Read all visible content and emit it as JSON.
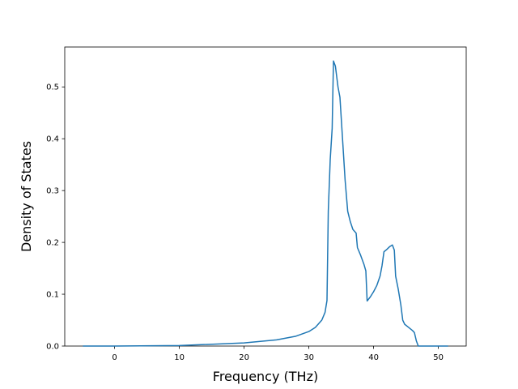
{
  "chart_data": {
    "type": "line",
    "x_label": "Frequency (THz)",
    "y_label": "Density of States",
    "xlim": [
      -7.7,
      54.3
    ],
    "ylim": [
      0,
      0.577
    ],
    "xticks": [
      0,
      10,
      20,
      30,
      40,
      50
    ],
    "yticks": [
      {
        "value": 0,
        "label": "0.0"
      },
      0.1,
      0.2,
      0.3,
      0.4,
      0.5
    ],
    "series": [
      {
        "color": "#1f77b4",
        "x": [
          -4.9,
          0,
          10,
          20,
          25,
          28,
          30,
          31,
          32,
          32.5,
          32.8,
          33.0,
          33.3,
          33.6,
          33.8,
          34.1,
          34.5,
          34.8,
          35.2,
          35.6,
          36.0,
          36.4,
          36.8,
          37.3,
          37.5,
          38.0,
          38.5,
          38.8,
          39.0,
          39.5,
          40.0,
          40.5,
          41.0,
          41.3,
          41.6,
          42.0,
          42.5,
          42.9,
          43.2,
          43.4,
          43.8,
          44.2,
          44.5,
          44.8,
          45.3,
          46.0,
          46.3,
          46.6,
          46.9,
          51.5
        ],
        "values": [
          0,
          0,
          0.001,
          0.006,
          0.012,
          0.019,
          0.028,
          0.036,
          0.05,
          0.065,
          0.088,
          0.26,
          0.36,
          0.42,
          0.55,
          0.54,
          0.5,
          0.48,
          0.4,
          0.32,
          0.26,
          0.24,
          0.225,
          0.218,
          0.19,
          0.175,
          0.158,
          0.145,
          0.087,
          0.095,
          0.105,
          0.117,
          0.135,
          0.155,
          0.182,
          0.186,
          0.192,
          0.195,
          0.185,
          0.135,
          0.11,
          0.08,
          0.05,
          0.042,
          0.037,
          0.03,
          0.026,
          0.01,
          0,
          0
        ]
      }
    ]
  }
}
